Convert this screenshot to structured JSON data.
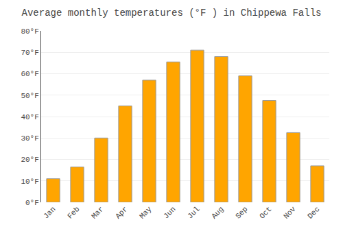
{
  "chart_data": {
    "type": "bar",
    "title": "Average monthly temperatures (°F ) in Chippewa Falls",
    "categories": [
      "Jan",
      "Feb",
      "Mar",
      "Apr",
      "May",
      "Jun",
      "Jul",
      "Aug",
      "Sep",
      "Oct",
      "Nov",
      "Dec"
    ],
    "values": [
      11,
      16.5,
      30,
      45,
      57,
      65.5,
      71,
      68,
      59,
      47.5,
      32.5,
      17
    ],
    "color": "#FFA500",
    "ylim": [
      0,
      80
    ],
    "yticks": [
      {
        "value": 0,
        "label": "0°F"
      },
      {
        "value": 10,
        "label": "10°F"
      },
      {
        "value": 20,
        "label": "20°F"
      },
      {
        "value": 30,
        "label": "30°F"
      },
      {
        "value": 40,
        "label": "40°F"
      },
      {
        "value": 50,
        "label": "50°F"
      },
      {
        "value": 60,
        "label": "60°F"
      },
      {
        "value": 70,
        "label": "70°F"
      },
      {
        "value": 80,
        "label": "80°F"
      }
    ],
    "grid": true
  }
}
